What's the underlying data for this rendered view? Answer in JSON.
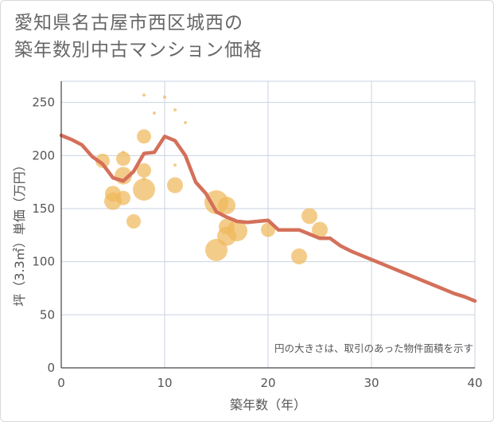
{
  "title_line1": "愛知県名古屋市西区城西の",
  "title_line2": "築年数別中古マンション価格",
  "chart_data": {
    "type": "scatter",
    "xlabel": "築年数（年）",
    "ylabel": "坪（3.3㎡）単価（万円）",
    "xlim": [
      0,
      40
    ],
    "ylim": [
      0,
      270
    ],
    "xticks": [
      0,
      10,
      20,
      30,
      40
    ],
    "yticks": [
      0,
      50,
      100,
      150,
      200,
      250
    ],
    "grid": true,
    "note": "円の大きさは、取引のあった物件面積を示す",
    "colors": {
      "bubble": "#f0b85c",
      "line": "#d4705a",
      "grid": "#c8d3e0"
    },
    "points": [
      {
        "x": 4,
        "y": 195,
        "s": 9
      },
      {
        "x": 5,
        "y": 164,
        "s": 10
      },
      {
        "x": 5,
        "y": 157,
        "s": 11
      },
      {
        "x": 6,
        "y": 203,
        "s": 2
      },
      {
        "x": 6,
        "y": 197,
        "s": 9
      },
      {
        "x": 6,
        "y": 181,
        "s": 11
      },
      {
        "x": 6,
        "y": 160,
        "s": 9
      },
      {
        "x": 7,
        "y": 138,
        "s": 9
      },
      {
        "x": 8,
        "y": 257,
        "s": 2
      },
      {
        "x": 8,
        "y": 218,
        "s": 9
      },
      {
        "x": 8,
        "y": 186,
        "s": 9
      },
      {
        "x": 8,
        "y": 178,
        "s": 2
      },
      {
        "x": 8,
        "y": 168,
        "s": 14
      },
      {
        "x": 9,
        "y": 240,
        "s": 2
      },
      {
        "x": 10,
        "y": 255,
        "s": 2
      },
      {
        "x": 11,
        "y": 243,
        "s": 2
      },
      {
        "x": 11,
        "y": 191,
        "s": 2
      },
      {
        "x": 11,
        "y": 172,
        "s": 10
      },
      {
        "x": 12,
        "y": 231,
        "s": 2
      },
      {
        "x": 15,
        "y": 156,
        "s": 15
      },
      {
        "x": 15,
        "y": 111,
        "s": 14
      },
      {
        "x": 16,
        "y": 153,
        "s": 11
      },
      {
        "x": 16,
        "y": 133,
        "s": 10
      },
      {
        "x": 16,
        "y": 124,
        "s": 12
      },
      {
        "x": 17,
        "y": 129,
        "s": 13
      },
      {
        "x": 20,
        "y": 130,
        "s": 9
      },
      {
        "x": 23,
        "y": 105,
        "s": 10
      },
      {
        "x": 24,
        "y": 143,
        "s": 10
      },
      {
        "x": 25,
        "y": 130,
        "s": 10
      }
    ],
    "trend": {
      "x": [
        0,
        1,
        2,
        3,
        4,
        5,
        6,
        7,
        8,
        9,
        10,
        11,
        12,
        13,
        14,
        15,
        16,
        17,
        18,
        19,
        20,
        21,
        22,
        23,
        24,
        25,
        26,
        27,
        28,
        29,
        30,
        31,
        32,
        33,
        34,
        35,
        36,
        37,
        38,
        39,
        40
      ],
      "y": [
        219,
        215,
        210,
        199,
        192,
        179,
        176,
        185,
        202,
        203,
        218,
        214,
        200,
        175,
        164,
        147,
        142,
        138,
        137,
        138,
        139,
        130,
        130,
        130,
        126,
        122,
        122,
        115,
        110,
        106,
        102,
        98,
        94,
        90,
        86,
        82,
        78,
        74,
        70,
        67,
        63
      ]
    }
  }
}
